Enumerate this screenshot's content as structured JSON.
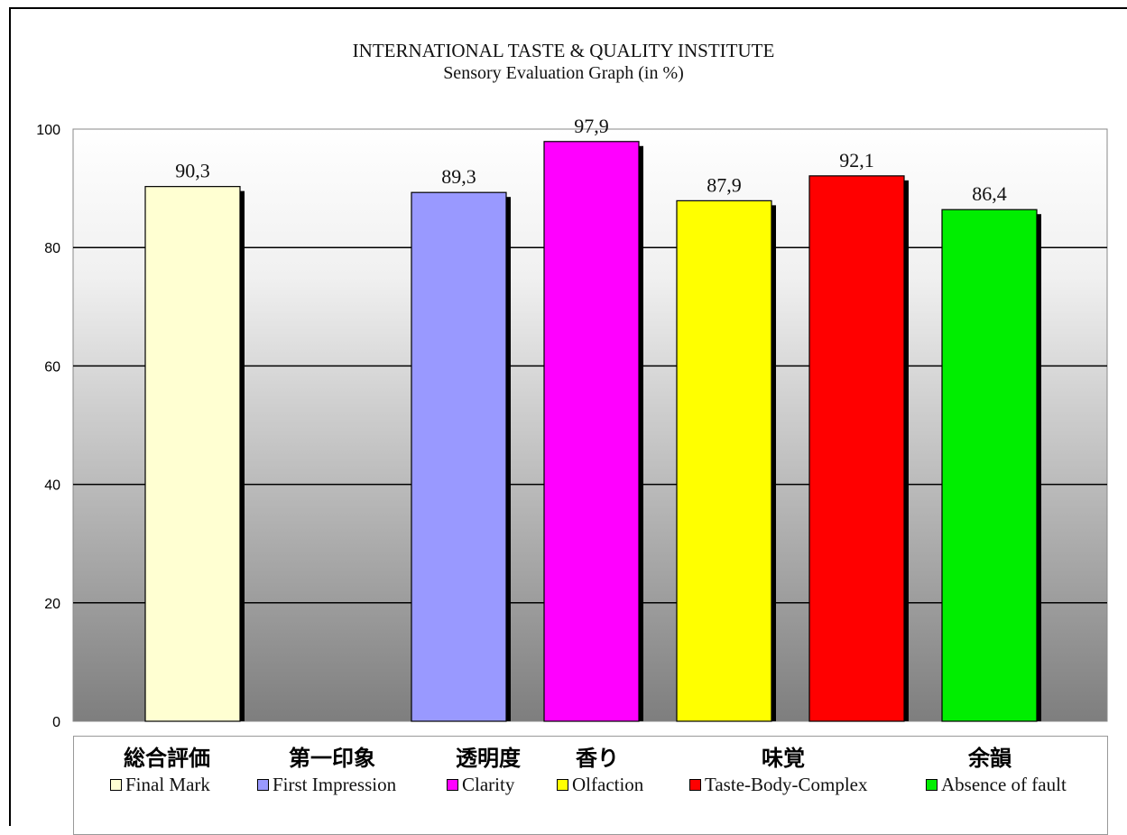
{
  "chart_data": {
    "type": "bar",
    "title": "INTERNATIONAL TASTE & QUALITY INSTITUTE",
    "subtitle": "Sensory Evaluation Graph (in %)",
    "xlabel": "",
    "ylabel": "",
    "ylim": [
      0,
      100
    ],
    "yticks": [
      "0",
      "20",
      "40",
      "60",
      "80",
      "100"
    ],
    "grid": true,
    "legend_position": "bottom",
    "categories": [
      "総合評価",
      "第一印象",
      "透明度",
      "香り",
      "味覚",
      "余韻"
    ],
    "series": [
      {
        "name": "Final Mark",
        "value": 90.3,
        "value_label": "90,3",
        "color": "#ffffd2"
      },
      {
        "name": "First Impression",
        "value": 89.3,
        "value_label": "89,3",
        "color": "#9999ff"
      },
      {
        "name": "Clarity",
        "value": 97.9,
        "value_label": "97,9",
        "color": "#ff00ff"
      },
      {
        "name": "Olfaction",
        "value": 87.9,
        "value_label": "87,9",
        "color": "#ffff00"
      },
      {
        "name": "Taste-Body-Complex",
        "value": 92.1,
        "value_label": "92,1",
        "color": "#ff0000"
      },
      {
        "name": "Absence of fault",
        "value": 86.4,
        "value_label": "86,4",
        "color": "#00ee00"
      }
    ]
  }
}
